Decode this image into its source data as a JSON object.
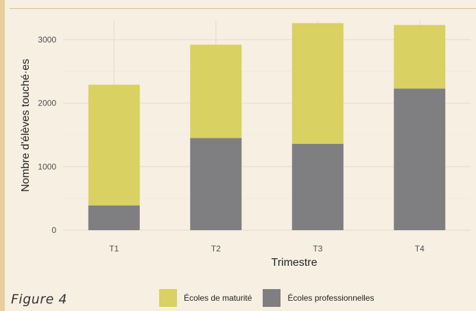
{
  "figure_caption": "Figure 4",
  "chart_data": {
    "type": "bar",
    "stacked": true,
    "categories": [
      "T1",
      "T2",
      "T3",
      "T4"
    ],
    "series": [
      {
        "name": "Écoles professionnelles",
        "color": "#7f7f82",
        "values": [
          390,
          1450,
          1360,
          2230
        ]
      },
      {
        "name": "Écoles de maturité",
        "color": "#d9d161",
        "values": [
          1900,
          1470,
          1900,
          1000
        ]
      }
    ],
    "title": "",
    "xlabel": "Trimestre",
    "ylabel": "Nombre d'élèves touché·es",
    "ylim": [
      0,
      3300
    ],
    "yticks": [
      0,
      1000,
      2000,
      3000
    ],
    "grid": true,
    "legend": "bottom"
  },
  "legend": {
    "items": [
      {
        "label": "Écoles de maturité",
        "color": "#d9d161"
      },
      {
        "label": "Écoles professionnelles",
        "color": "#7f7f82"
      }
    ]
  }
}
